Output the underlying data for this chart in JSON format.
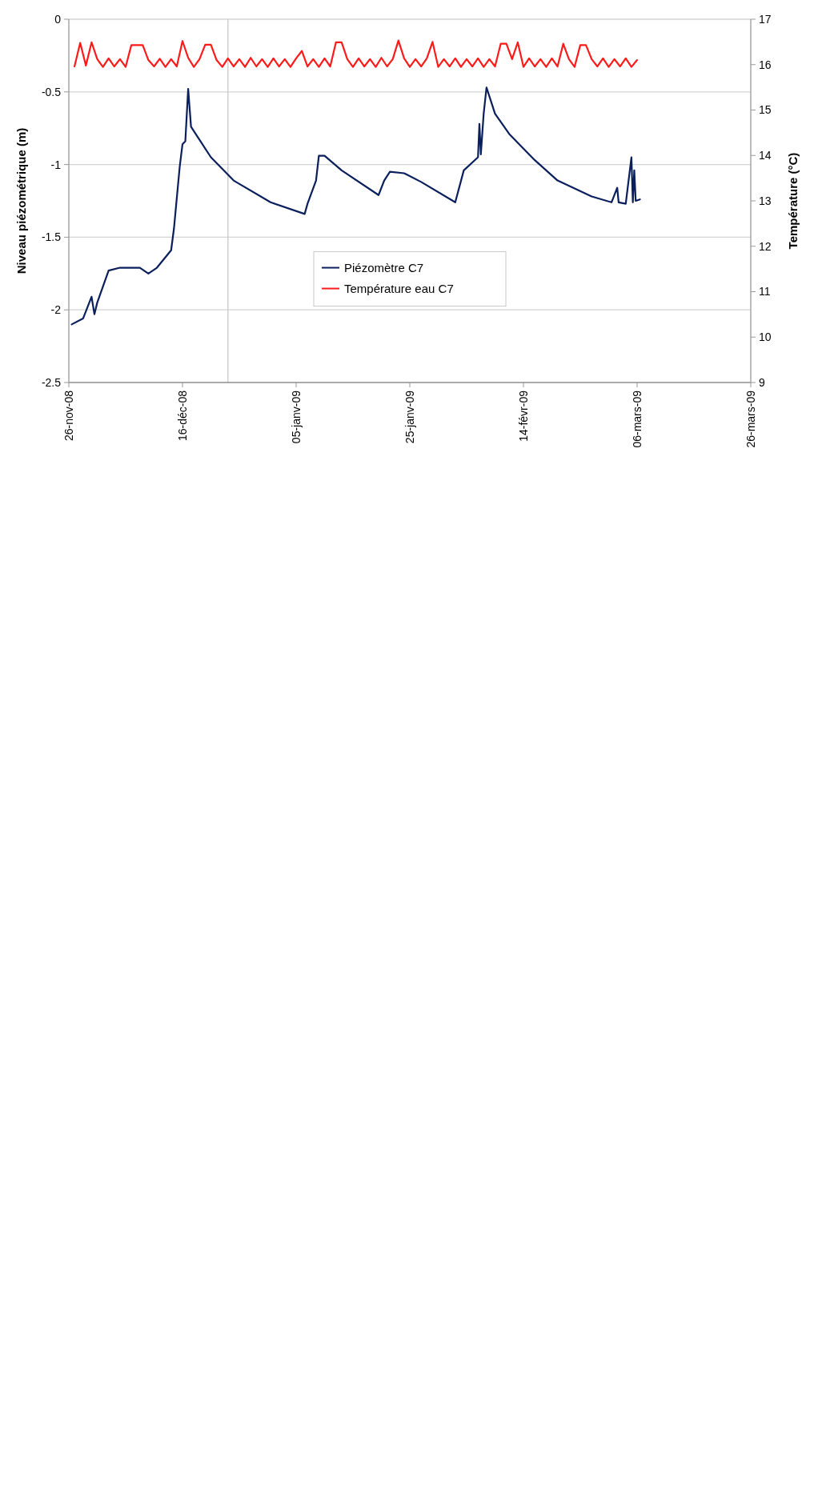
{
  "chart_data": {
    "type": "line",
    "xlabel": null,
    "ylabel": "Niveau piézométrique (m)",
    "y2label": "Température (°C)",
    "xlim": [
      "2008-11-26",
      "2009-03-26"
    ],
    "xticks": [
      {
        "value": "2008-11-26",
        "label": "26-nov-08"
      },
      {
        "value": "2008-12-16",
        "label": "16-déc-08"
      },
      {
        "value": "2009-01-05",
        "label": "05-janv-09"
      },
      {
        "value": "2009-01-25",
        "label": "25-janv-09"
      },
      {
        "value": "2009-02-14",
        "label": "14-févr-09"
      },
      {
        "value": "2009-03-06",
        "label": "06-mars-09"
      },
      {
        "value": "2009-03-26",
        "label": "26-mars-09"
      }
    ],
    "ylim": [
      -2.5,
      0
    ],
    "yticks": [
      -2.5,
      -2,
      -1.5,
      -1,
      -0.5,
      0
    ],
    "y2lim": [
      9,
      17
    ],
    "y2ticks": [
      9,
      10,
      11,
      12,
      13,
      14,
      15,
      16,
      17
    ],
    "grid": "y",
    "legend": "bottom",
    "line_style": "solid",
    "marker": "none",
    "ref_lines": [
      {
        "axis": "x",
        "value": "2008-12-24",
        "color": "#c8c8c8"
      }
    ],
    "series": [
      {
        "name": "Piézomètre C7",
        "color": "#0a1f5c",
        "x": [
          "2008-11-26T12:00",
          "2008-11-28T12:00",
          "2008-11-30T00:00",
          "2008-11-30T12:00",
          "2008-12-01T00:00",
          "2008-12-03T00:00",
          "2008-12-05T00:00",
          "2008-12-08T12:00",
          "2008-12-10T00:00",
          "2008-12-11T12:00",
          "2008-12-14T00:00",
          "2008-12-14T12:00",
          "2008-12-15T12:00",
          "2008-12-16T00:00",
          "2008-12-16T12:00",
          "2008-12-17T00:00",
          "2008-12-17T12:00",
          "2008-12-21T00:00",
          "2008-12-25T00:00",
          "2008-12-31T12:00",
          "2009-01-06T12:00",
          "2009-01-07T00:00",
          "2009-01-08T12:00",
          "2009-01-09T00:00",
          "2009-01-10T00:00",
          "2009-01-13T00:00",
          "2009-01-19T12:00",
          "2009-01-20T12:00",
          "2009-01-21T12:00",
          "2009-01-24T00:00",
          "2009-01-27T00:00",
          "2009-02-02T00:00",
          "2009-02-03T12:00",
          "2009-02-06T00:00",
          "2009-02-06T06:00",
          "2009-02-06T12:00",
          "2009-02-07T00:00",
          "2009-02-07T12:00",
          "2009-02-09T00:00",
          "2009-02-11T12:00",
          "2009-02-16T00:00",
          "2009-02-20T00:00",
          "2009-02-26T00:00",
          "2009-03-01T12:00",
          "2009-03-02T12:00",
          "2009-03-02T18:00",
          "2009-03-04T00:00",
          "2009-03-05T00:00",
          "2009-03-05T06:00",
          "2009-03-05T12:00",
          "2009-03-05T18:00",
          "2009-03-06T12:00"
        ],
        "values": [
          -2.1,
          -2.06,
          -1.91,
          -2.03,
          -1.95,
          -1.73,
          -1.71,
          -1.71,
          -1.75,
          -1.71,
          -1.59,
          -1.44,
          -1.02,
          -0.86,
          -0.84,
          -0.48,
          -0.74,
          -0.95,
          -1.11,
          -1.26,
          -1.34,
          -1.27,
          -1.11,
          -0.94,
          -0.94,
          -1.04,
          -1.21,
          -1.11,
          -1.05,
          -1.06,
          -1.12,
          -1.26,
          -1.04,
          -0.95,
          -0.72,
          -0.93,
          -0.65,
          -0.47,
          -0.65,
          -0.79,
          -0.97,
          -1.11,
          -1.22,
          -1.26,
          -1.16,
          -1.26,
          -1.27,
          -0.95,
          -1.26,
          -1.04,
          -1.25,
          -1.24
        ]
      },
      {
        "name": "Température eau C7",
        "color": "#ff1a1a",
        "axis": "y2",
        "x": [
          "2008-11-27",
          "2008-11-28",
          "2008-11-29",
          "2008-11-30",
          "2008-12-01",
          "2008-12-02",
          "2008-12-03",
          "2008-12-04",
          "2008-12-05",
          "2008-12-06",
          "2008-12-07",
          "2008-12-08",
          "2008-12-09",
          "2008-12-10",
          "2008-12-11",
          "2008-12-12",
          "2008-12-13",
          "2008-12-14",
          "2008-12-15",
          "2008-12-16",
          "2008-12-17",
          "2008-12-18",
          "2008-12-19",
          "2008-12-20",
          "2008-12-21",
          "2008-12-22",
          "2008-12-23",
          "2008-12-24",
          "2008-12-25",
          "2008-12-26",
          "2008-12-27",
          "2008-12-28",
          "2008-12-29",
          "2008-12-30",
          "2008-12-31",
          "2009-01-01",
          "2009-01-02",
          "2009-01-03",
          "2009-01-04",
          "2009-01-05",
          "2009-01-06",
          "2009-01-07",
          "2009-01-08",
          "2009-01-09",
          "2009-01-10",
          "2009-01-11",
          "2009-01-12",
          "2009-01-13",
          "2009-01-14",
          "2009-01-15",
          "2009-01-16",
          "2009-01-17",
          "2009-01-18",
          "2009-01-19",
          "2009-01-20",
          "2009-01-21",
          "2009-01-22",
          "2009-01-23",
          "2009-01-24",
          "2009-01-25",
          "2009-01-26",
          "2009-01-27",
          "2009-01-28",
          "2009-01-29",
          "2009-01-30",
          "2009-01-31",
          "2009-02-01",
          "2009-02-02",
          "2009-02-03",
          "2009-02-04",
          "2009-02-05",
          "2009-02-06",
          "2009-02-07",
          "2009-02-08",
          "2009-02-09",
          "2009-02-10",
          "2009-02-11",
          "2009-02-12",
          "2009-02-13",
          "2009-02-14",
          "2009-02-15",
          "2009-02-16",
          "2009-02-17",
          "2009-02-18",
          "2009-02-19",
          "2009-02-20",
          "2009-02-21",
          "2009-02-22",
          "2009-02-23",
          "2009-02-24",
          "2009-02-25",
          "2009-02-26",
          "2009-02-27",
          "2009-02-28",
          "2009-03-01",
          "2009-03-02",
          "2009-03-03",
          "2009-03-04",
          "2009-03-05",
          "2009-03-06"
        ],
        "values": [
          15.96,
          16.48,
          15.98,
          16.49,
          16.12,
          15.95,
          16.14,
          15.96,
          16.12,
          15.95,
          16.43,
          16.43,
          16.43,
          16.1,
          15.96,
          16.13,
          15.95,
          16.12,
          15.96,
          16.52,
          16.15,
          15.95,
          16.12,
          16.44,
          16.44,
          16.1,
          15.95,
          16.14,
          15.96,
          16.12,
          15.95,
          16.15,
          15.96,
          16.12,
          15.95,
          16.14,
          15.96,
          16.12,
          15.95,
          16.14,
          16.3,
          15.96,
          16.12,
          15.95,
          16.14,
          15.96,
          16.49,
          16.49,
          16.12,
          15.95,
          16.14,
          15.96,
          16.12,
          15.95,
          16.15,
          15.96,
          16.12,
          16.53,
          16.14,
          15.95,
          16.12,
          15.96,
          16.14,
          16.5,
          15.95,
          16.12,
          15.96,
          16.14,
          15.95,
          16.12,
          15.96,
          16.14,
          15.95,
          16.12,
          15.96,
          16.46,
          16.46,
          16.12,
          16.49,
          15.95,
          16.14,
          15.96,
          16.12,
          15.95,
          16.14,
          15.96,
          16.46,
          16.12,
          15.95,
          16.43,
          16.43,
          16.12,
          15.96,
          16.14,
          15.95,
          16.12,
          15.96,
          16.14,
          15.95,
          16.1
        ]
      }
    ]
  }
}
